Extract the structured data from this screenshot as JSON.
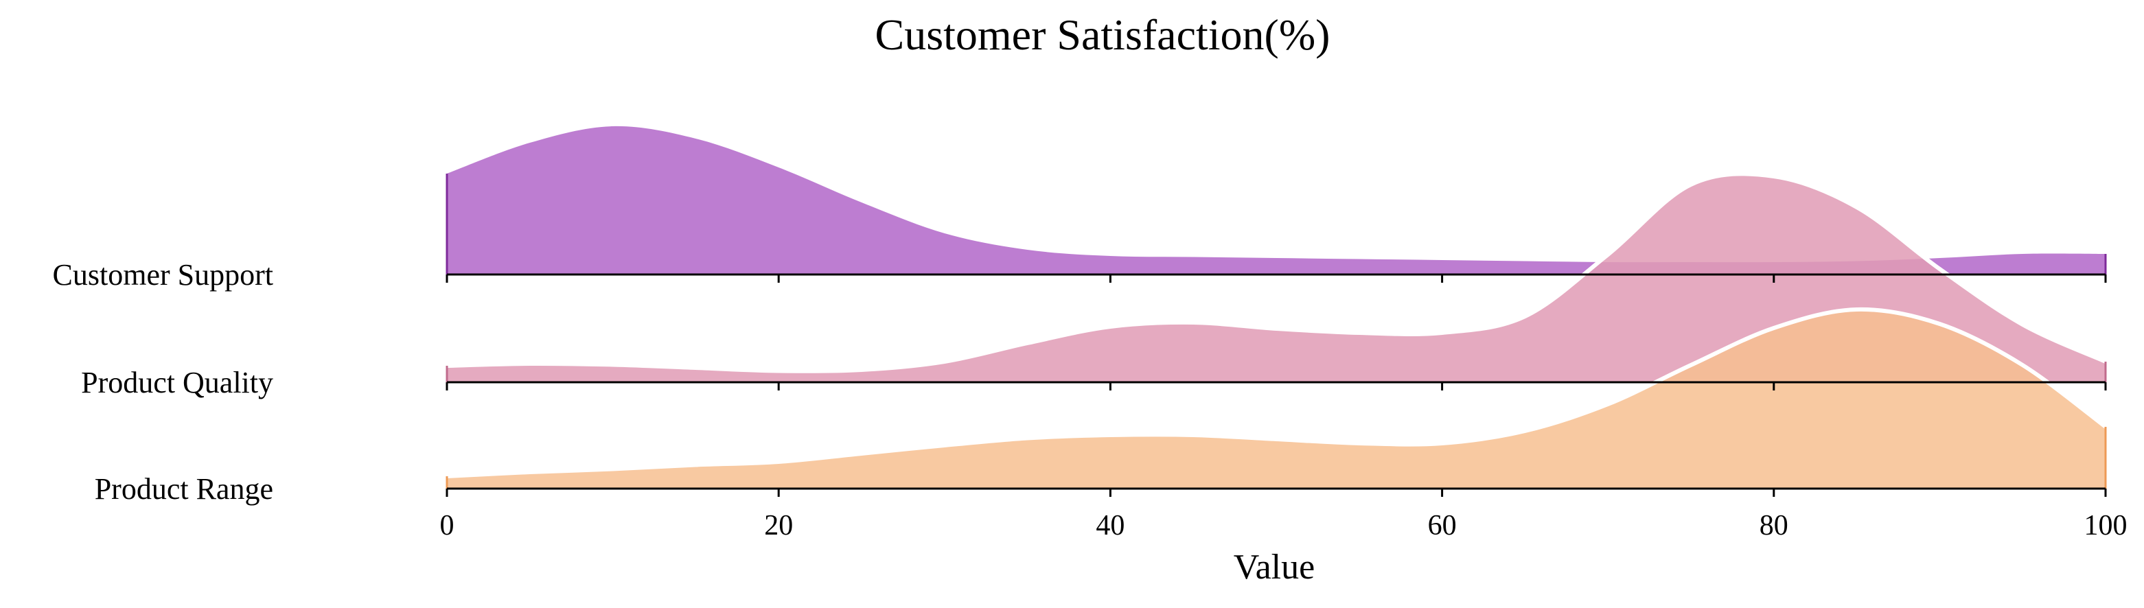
{
  "chart_data": {
    "type": "area",
    "subtype": "ridgeline",
    "title": "Customer Satisfaction(%)",
    "xlabel": "Value",
    "ylabel": "",
    "xlim": [
      0,
      100
    ],
    "x_ticks": [
      0,
      20,
      40,
      60,
      80,
      100
    ],
    "grid": false,
    "legend": "none",
    "x": [
      0,
      5,
      10,
      15,
      20,
      25,
      30,
      35,
      40,
      45,
      50,
      55,
      60,
      65,
      70,
      75,
      80,
      85,
      90,
      95,
      100
    ],
    "series": [
      {
        "name": "Customer Support",
        "color": "#b266c9",
        "edge_color": "#7e2a9a",
        "values": [
          0.49,
          0.64,
          0.72,
          0.66,
          0.52,
          0.35,
          0.2,
          0.12,
          0.09,
          0.085,
          0.08,
          0.075,
          0.07,
          0.065,
          0.06,
          0.06,
          0.06,
          0.065,
          0.08,
          0.1,
          0.1
        ]
      },
      {
        "name": "Product Quality",
        "color": "#e19bb5",
        "edge_color": "#c06b8c",
        "values": [
          0.08,
          0.09,
          0.085,
          0.07,
          0.055,
          0.06,
          0.1,
          0.19,
          0.27,
          0.29,
          0.26,
          0.24,
          0.24,
          0.32,
          0.62,
          0.96,
          1.0,
          0.85,
          0.55,
          0.28,
          0.1
        ]
      },
      {
        "name": "Product Range",
        "color": "#f7c090",
        "edge_color": "#ee9a55",
        "values": [
          0.06,
          0.08,
          0.095,
          0.115,
          0.13,
          0.17,
          0.21,
          0.245,
          0.26,
          0.26,
          0.24,
          0.22,
          0.22,
          0.28,
          0.41,
          0.6,
          0.78,
          0.87,
          0.8,
          0.6,
          0.3
        ]
      }
    ]
  }
}
